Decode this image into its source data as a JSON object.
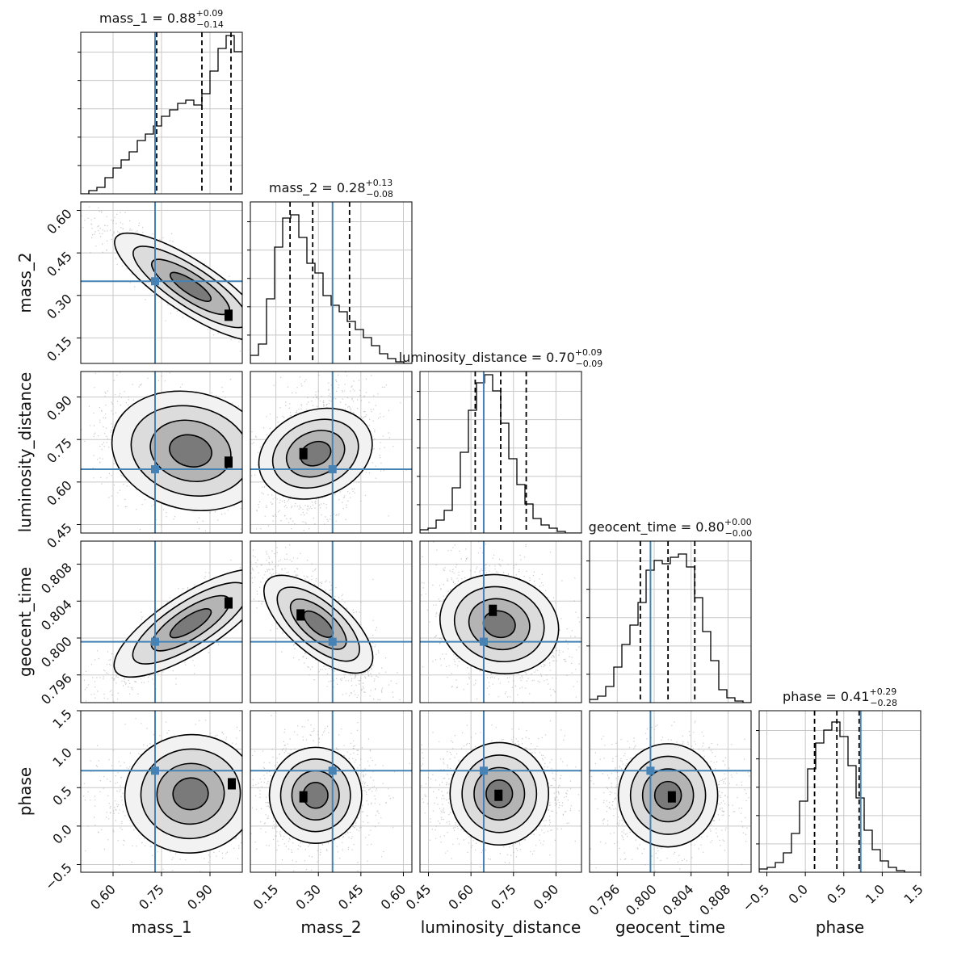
{
  "chart_data": {
    "type": "corner",
    "parameters": [
      "mass_1",
      "mass_2",
      "luminosity_distance",
      "geocent_time",
      "phase"
    ],
    "axis_labels": [
      "mass_1",
      "mass_2",
      "luminosity_distance",
      "geocent_time",
      "phase"
    ],
    "ranges": [
      [
        0.5,
        1.0
      ],
      [
        0.06,
        0.63
      ],
      [
        0.42,
        0.99
      ],
      [
        0.793,
        0.8105
      ],
      [
        -0.6,
        1.5
      ]
    ],
    "ticks": [
      [
        "0.60",
        "0.75",
        "0.90"
      ],
      [
        "0.15",
        "0.30",
        "0.45",
        "0.60"
      ],
      [
        "0.45",
        "0.60",
        "0.75",
        "0.90"
      ],
      [
        "0.796",
        "0.800",
        "0.804",
        "0.808"
      ],
      [
        "−0.5",
        "0.0",
        "0.5",
        "1.0",
        "1.5"
      ]
    ],
    "truths": [
      0.73,
      0.35,
      0.645,
      0.7996,
      0.72
    ],
    "truth_color": "#4682b4",
    "grid": true,
    "quantiles": [
      0.16,
      0.5,
      0.84
    ],
    "titles": [
      {
        "param": "mass_1",
        "median": "0.88",
        "plus": "+0.09",
        "minus": "−0.14"
      },
      {
        "param": "mass_2",
        "median": "0.28",
        "plus": "+0.13",
        "minus": "−0.08"
      },
      {
        "param": "luminosity_distance",
        "median": "0.70",
        "plus": "+0.09",
        "minus": "−0.09"
      },
      {
        "param": "geocent_time",
        "median": "0.80",
        "plus": "+0.00",
        "minus": "−0.00"
      },
      {
        "param": "phase",
        "median": "0.41",
        "plus": "+0.29",
        "minus": "−0.28"
      }
    ],
    "quantile_lines": [
      [
        0.735,
        0.875,
        0.965
      ],
      [
        0.2,
        0.28,
        0.41
      ],
      [
        0.615,
        0.705,
        0.795
      ],
      [
        0.7985,
        0.8015,
        0.8044
      ],
      [
        0.12,
        0.41,
        0.7
      ]
    ],
    "marginals": [
      {
        "edges_start": 0.5,
        "bin_width": 0.025,
        "counts": [
          0.0,
          0.02,
          0.04,
          0.1,
          0.16,
          0.21,
          0.26,
          0.33,
          0.37,
          0.42,
          0.48,
          0.52,
          0.56,
          0.58,
          0.55,
          0.62,
          0.76,
          0.9,
          0.98,
          0.88
        ]
      },
      {
        "edges_start": 0.06,
        "bin_width": 0.0285,
        "counts": [
          0.05,
          0.12,
          0.4,
          0.72,
          0.9,
          0.92,
          0.78,
          0.62,
          0.56,
          0.42,
          0.36,
          0.32,
          0.26,
          0.21,
          0.16,
          0.11,
          0.06,
          0.03,
          0.01,
          0.0
        ]
      },
      {
        "edges_start": 0.42,
        "bin_width": 0.0285,
        "counts": [
          0.02,
          0.03,
          0.08,
          0.14,
          0.28,
          0.5,
          0.76,
          0.93,
          0.98,
          0.88,
          0.68,
          0.46,
          0.3,
          0.18,
          0.09,
          0.05,
          0.03,
          0.01,
          0.0,
          0.0
        ]
      },
      {
        "edges_start": 0.793,
        "bin_width": 0.000875,
        "counts": [
          0.02,
          0.04,
          0.1,
          0.22,
          0.36,
          0.48,
          0.62,
          0.82,
          0.88,
          0.86,
          0.9,
          0.92,
          0.84,
          0.65,
          0.44,
          0.26,
          0.08,
          0.03,
          0.01,
          0.0
        ]
      },
      {
        "edges_start": -0.6,
        "bin_width": 0.105,
        "counts": [
          0.02,
          0.03,
          0.06,
          0.12,
          0.24,
          0.44,
          0.64,
          0.8,
          0.88,
          0.93,
          0.84,
          0.66,
          0.46,
          0.26,
          0.14,
          0.07,
          0.03,
          0.01,
          0.0,
          0.0
        ]
      }
    ],
    "pairs": [
      {
        "row": 1,
        "col": 0,
        "center": [
          0.84,
          0.33
        ],
        "spread": [
          0.11,
          0.09
        ],
        "corr": -0.92,
        "peak": [
          0.96,
          0.23
        ]
      },
      {
        "row": 2,
        "col": 0,
        "center": [
          0.84,
          0.71
        ],
        "spread": [
          0.12,
          0.09
        ],
        "corr": -0.35,
        "peak": [
          0.96,
          0.67
        ]
      },
      {
        "row": 2,
        "col": 1,
        "center": [
          0.29,
          0.7
        ],
        "spread": [
          0.08,
          0.09
        ],
        "corr": 0.35,
        "peak": [
          0.25,
          0.7
        ]
      },
      {
        "row": 3,
        "col": 0,
        "center": [
          0.84,
          0.8016
        ],
        "spread": [
          0.11,
          0.0028
        ],
        "corr": 0.88,
        "peak": [
          0.96,
          0.8038
        ]
      },
      {
        "row": 3,
        "col": 1,
        "center": [
          0.3,
          0.8015
        ],
        "spread": [
          0.08,
          0.0028
        ],
        "corr": -0.75,
        "peak": [
          0.24,
          0.8025
        ]
      },
      {
        "row": 3,
        "col": 2,
        "center": [
          0.7,
          0.8015
        ],
        "spread": [
          0.09,
          0.0028
        ],
        "corr": -0.25,
        "peak": [
          0.68,
          0.803
        ]
      },
      {
        "row": 4,
        "col": 0,
        "center": [
          0.84,
          0.42
        ],
        "spread": [
          0.11,
          0.28
        ],
        "corr": 0.15,
        "peak": [
          0.97,
          0.55
        ]
      },
      {
        "row": 4,
        "col": 1,
        "center": [
          0.29,
          0.4
        ],
        "spread": [
          0.08,
          0.28
        ],
        "corr": 0.0,
        "peak": [
          0.25,
          0.38
        ]
      },
      {
        "row": 4,
        "col": 2,
        "center": [
          0.7,
          0.42
        ],
        "spread": [
          0.09,
          0.28
        ],
        "corr": 0.0,
        "peak": [
          0.7,
          0.4
        ]
      },
      {
        "row": 4,
        "col": 3,
        "center": [
          0.8015,
          0.4
        ],
        "spread": [
          0.0028,
          0.28
        ],
        "corr": 0.0,
        "peak": [
          0.802,
          0.38
        ]
      }
    ]
  }
}
